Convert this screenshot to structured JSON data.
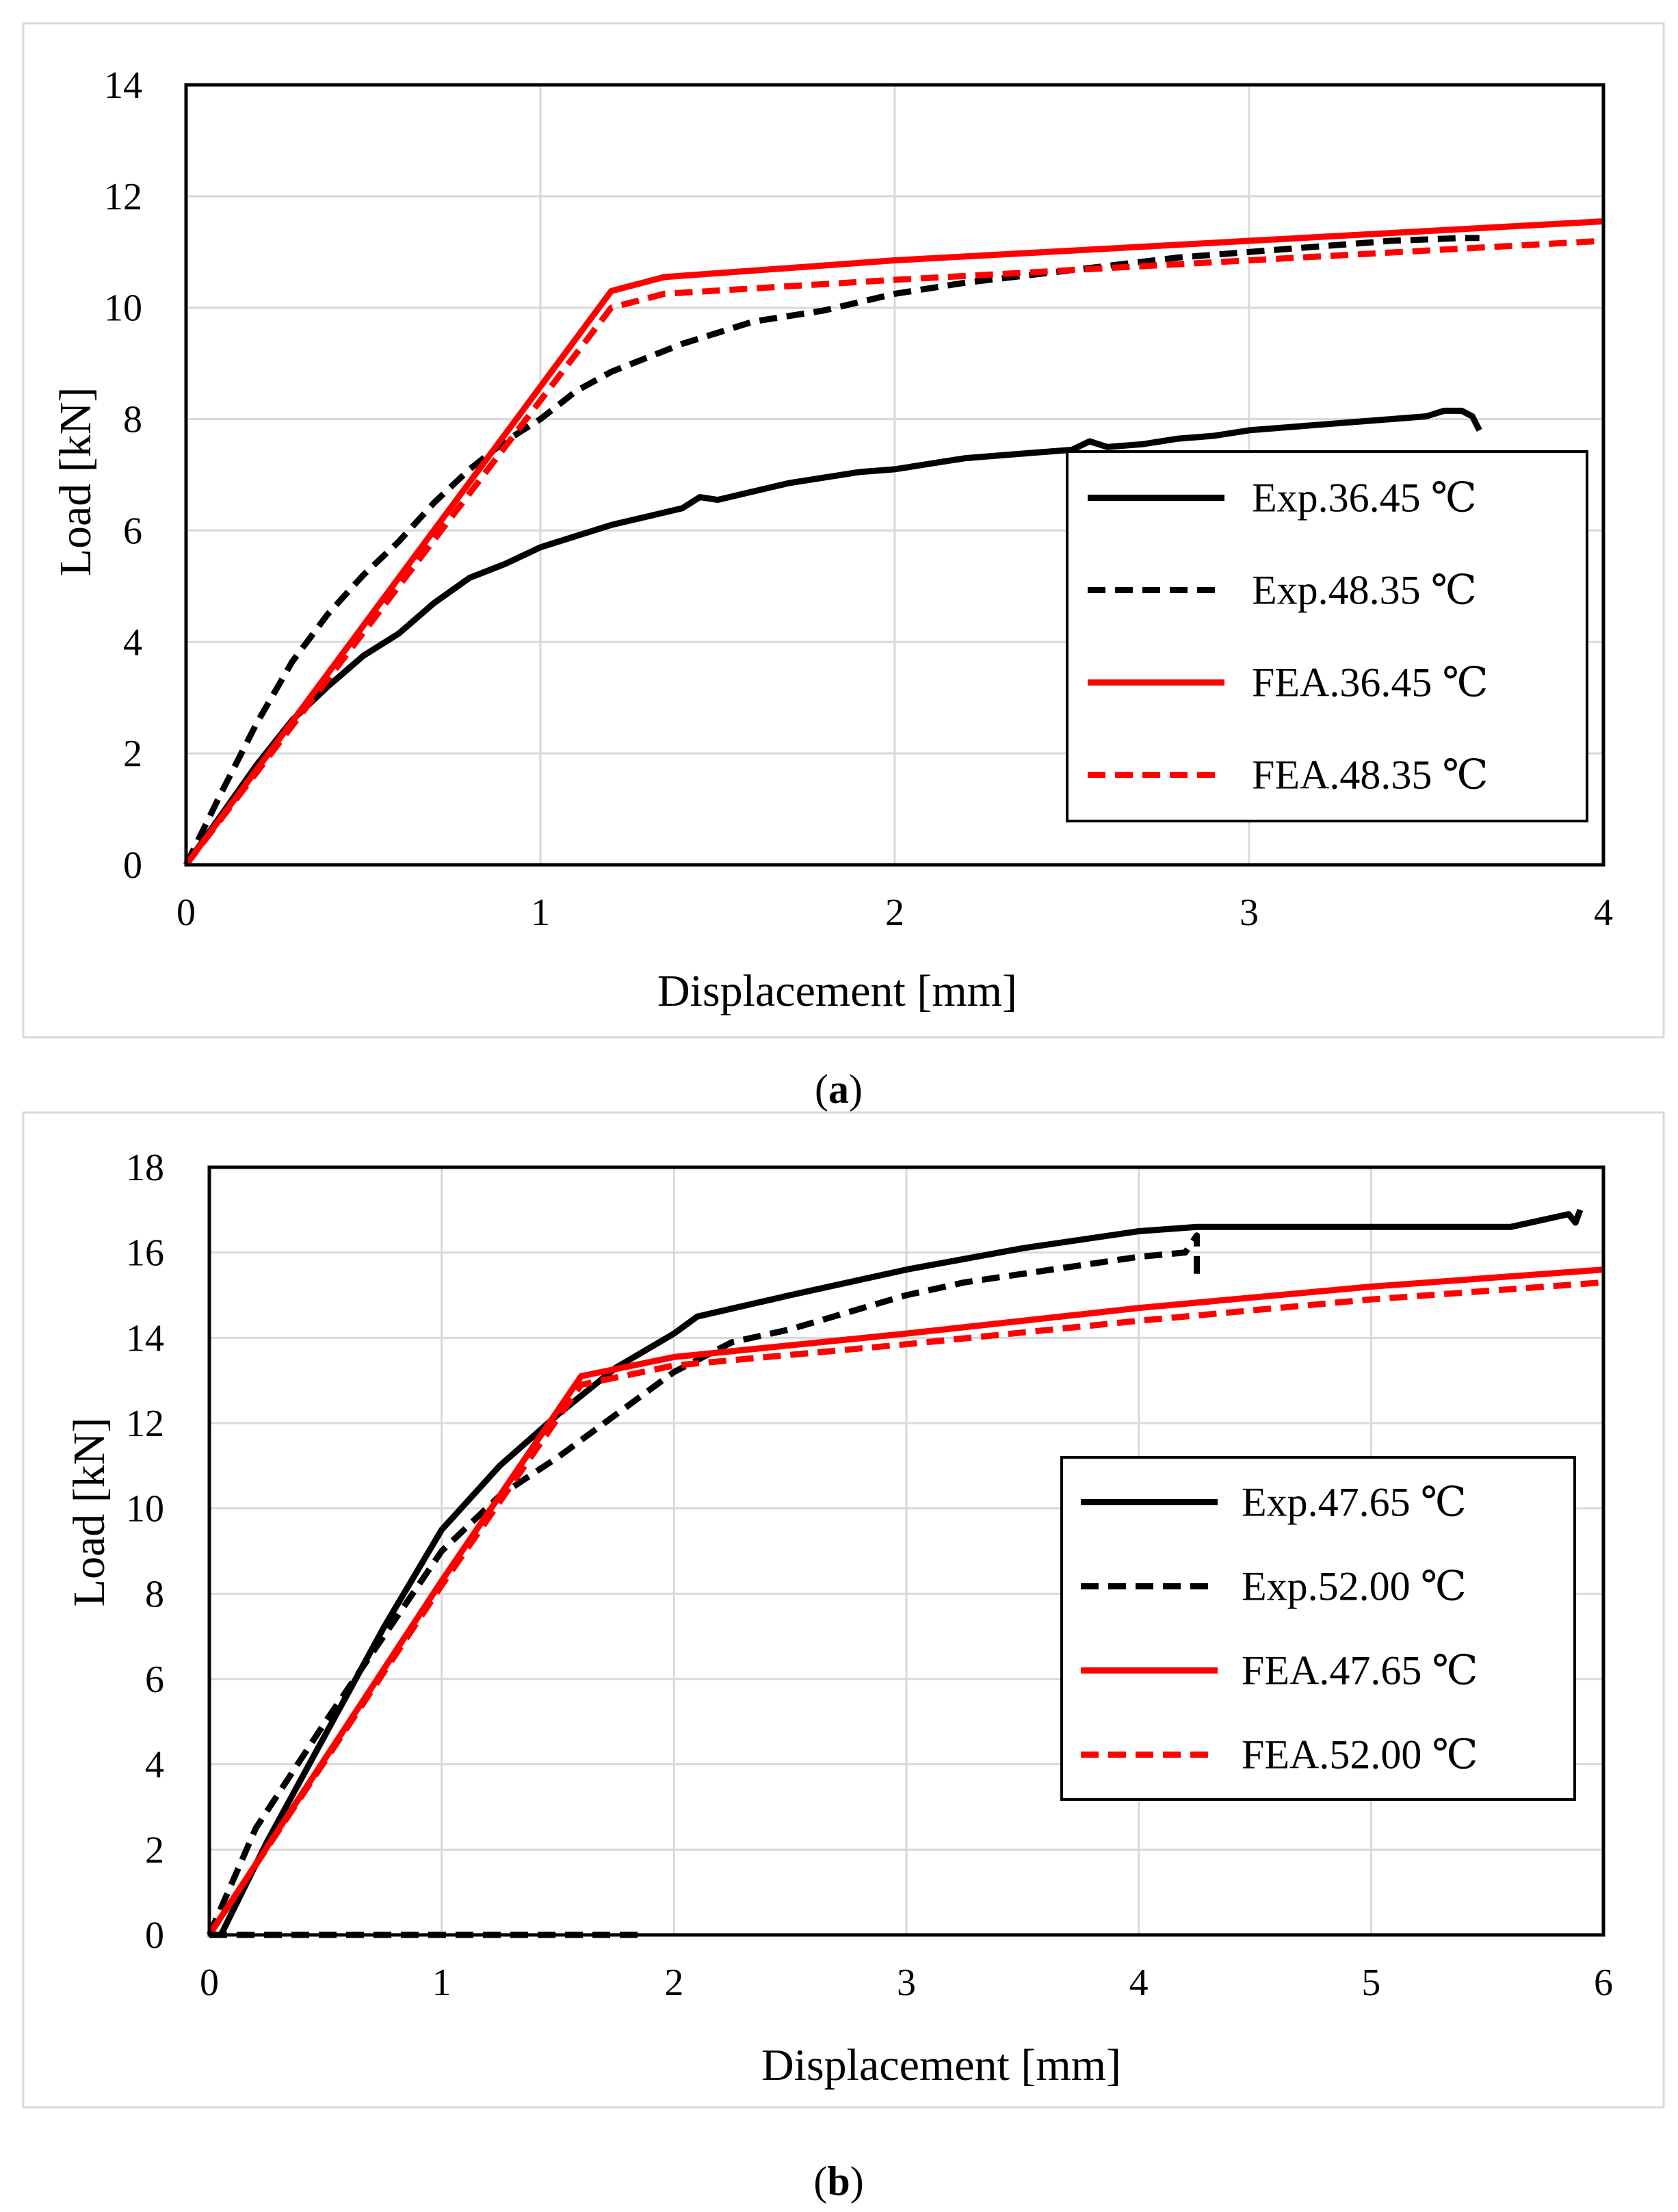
{
  "chart_data": [
    {
      "type": "line",
      "caption_letter": "a",
      "caption_open": "(",
      "caption_close": ")",
      "xlabel": "Displacement [mm]",
      "ylabel": "Load [kN]",
      "xlim": [
        0,
        4
      ],
      "ylim": [
        0,
        14
      ],
      "xticks": [
        0,
        1,
        2,
        3,
        4
      ],
      "yticks": [
        0,
        2,
        4,
        6,
        8,
        10,
        12,
        14
      ],
      "grid": true,
      "legend_position": "bottom-right",
      "series": [
        {
          "name": "Exp.36.45 ℃",
          "color": "#000000",
          "dash": "solid",
          "points": [
            [
              0,
              0
            ],
            [
              0.1,
              0.9
            ],
            [
              0.2,
              1.8
            ],
            [
              0.3,
              2.6
            ],
            [
              0.4,
              3.2
            ],
            [
              0.5,
              3.75
            ],
            [
              0.6,
              4.15
            ],
            [
              0.7,
              4.7
            ],
            [
              0.8,
              5.15
            ],
            [
              0.9,
              5.4
            ],
            [
              1.0,
              5.7
            ],
            [
              1.1,
              5.9
            ],
            [
              1.2,
              6.1
            ],
            [
              1.3,
              6.25
            ],
            [
              1.4,
              6.4
            ],
            [
              1.45,
              6.6
            ],
            [
              1.5,
              6.55
            ],
            [
              1.6,
              6.7
            ],
            [
              1.7,
              6.85
            ],
            [
              1.8,
              6.95
            ],
            [
              1.9,
              7.05
            ],
            [
              2.0,
              7.1
            ],
            [
              2.1,
              7.2
            ],
            [
              2.2,
              7.3
            ],
            [
              2.3,
              7.35
            ],
            [
              2.4,
              7.4
            ],
            [
              2.5,
              7.45
            ],
            [
              2.55,
              7.6
            ],
            [
              2.6,
              7.5
            ],
            [
              2.7,
              7.55
            ],
            [
              2.8,
              7.65
            ],
            [
              2.9,
              7.7
            ],
            [
              3.0,
              7.8
            ],
            [
              3.1,
              7.85
            ],
            [
              3.2,
              7.9
            ],
            [
              3.3,
              7.95
            ],
            [
              3.4,
              8.0
            ],
            [
              3.5,
              8.05
            ],
            [
              3.55,
              8.15
            ],
            [
              3.6,
              8.15
            ],
            [
              3.63,
              8.05
            ],
            [
              3.65,
              7.8
            ]
          ]
        },
        {
          "name": "Exp.48.35 ℃",
          "color": "#000000",
          "dash": "dashed",
          "points": [
            [
              0,
              0
            ],
            [
              0.1,
              1.3
            ],
            [
              0.2,
              2.55
            ],
            [
              0.3,
              3.65
            ],
            [
              0.4,
              4.5
            ],
            [
              0.5,
              5.2
            ],
            [
              0.6,
              5.8
            ],
            [
              0.7,
              6.5
            ],
            [
              0.8,
              7.1
            ],
            [
              0.9,
              7.6
            ],
            [
              1.0,
              8.0
            ],
            [
              1.1,
              8.5
            ],
            [
              1.2,
              8.85
            ],
            [
              1.3,
              9.1
            ],
            [
              1.4,
              9.35
            ],
            [
              1.5,
              9.55
            ],
            [
              1.6,
              9.75
            ],
            [
              1.7,
              9.85
            ],
            [
              1.8,
              9.95
            ],
            [
              1.9,
              10.1
            ],
            [
              2.0,
              10.25
            ],
            [
              2.2,
              10.45
            ],
            [
              2.4,
              10.6
            ],
            [
              2.6,
              10.75
            ],
            [
              2.8,
              10.9
            ],
            [
              3.0,
              11.0
            ],
            [
              3.2,
              11.1
            ],
            [
              3.4,
              11.2
            ],
            [
              3.6,
              11.25
            ],
            [
              3.65,
              11.25
            ]
          ]
        },
        {
          "name": "FEA.36.45 ℃",
          "color": "#ff0000",
          "dash": "solid",
          "points": [
            [
              0,
              0
            ],
            [
              1.2,
              10.3
            ],
            [
              1.35,
              10.55
            ],
            [
              2.0,
              10.85
            ],
            [
              3.0,
              11.2
            ],
            [
              4.0,
              11.55
            ]
          ]
        },
        {
          "name": "FEA.48.35 ℃",
          "color": "#ff0000",
          "dash": "dashed",
          "points": [
            [
              0,
              0
            ],
            [
              1.2,
              10.0
            ],
            [
              1.35,
              10.25
            ],
            [
              2.0,
              10.5
            ],
            [
              3.0,
              10.85
            ],
            [
              4.0,
              11.2
            ]
          ]
        }
      ]
    },
    {
      "type": "line",
      "caption_letter": "b",
      "caption_open": "(",
      "caption_close": ")",
      "xlabel": "Displacement [mm]",
      "ylabel": "Load [kN]",
      "xlim": [
        0,
        6
      ],
      "ylim": [
        0,
        18
      ],
      "xticks": [
        0,
        1,
        2,
        3,
        4,
        5,
        6
      ],
      "yticks": [
        0,
        2,
        4,
        6,
        8,
        10,
        12,
        14,
        16,
        18
      ],
      "grid": true,
      "legend_position": "middle-right",
      "series": [
        {
          "name": "Exp.47.65 ℃",
          "color": "#000000",
          "dash": "solid",
          "points": [
            [
              0.05,
              0
            ],
            [
              0.25,
              2.2
            ],
            [
              0.5,
              4.7
            ],
            [
              0.75,
              7.2
            ],
            [
              1.0,
              9.5
            ],
            [
              1.25,
              11.0
            ],
            [
              1.5,
              12.2
            ],
            [
              1.75,
              13.3
            ],
            [
              2.0,
              14.1
            ],
            [
              2.1,
              14.5
            ],
            [
              2.5,
              15.0
            ],
            [
              3.0,
              15.6
            ],
            [
              3.5,
              16.1
            ],
            [
              4.0,
              16.5
            ],
            [
              4.25,
              16.6
            ],
            [
              5.0,
              16.6
            ],
            [
              5.6,
              16.6
            ],
            [
              5.85,
              16.9
            ],
            [
              5.88,
              16.7
            ],
            [
              5.9,
              17.0
            ]
          ]
        },
        {
          "name": "Exp.52.00 ℃",
          "color": "#000000",
          "dash": "dashed",
          "points": [
            [
              0,
              0
            ],
            [
              0.2,
              2.5
            ],
            [
              0.5,
              5.0
            ],
            [
              0.75,
              7.0
            ],
            [
              1.0,
              9.0
            ],
            [
              1.25,
              10.3
            ],
            [
              1.5,
              11.2
            ],
            [
              1.75,
              12.2
            ],
            [
              2.0,
              13.2
            ],
            [
              2.25,
              13.9
            ],
            [
              2.5,
              14.2
            ],
            [
              2.75,
              14.6
            ],
            [
              3.0,
              15.0
            ],
            [
              3.25,
              15.3
            ],
            [
              3.5,
              15.5
            ],
            [
              3.75,
              15.7
            ],
            [
              4.0,
              15.9
            ],
            [
              4.2,
              16.0
            ],
            [
              4.25,
              16.4
            ],
            [
              4.25,
              15.4
            ]
          ]
        },
        {
          "name": "FEA.47.65 ℃",
          "color": "#ff0000",
          "dash": "solid",
          "points": [
            [
              0,
              0
            ],
            [
              1.0,
              8.3
            ],
            [
              1.6,
              13.1
            ],
            [
              2.0,
              13.55
            ],
            [
              3.0,
              14.1
            ],
            [
              4.0,
              14.7
            ],
            [
              5.0,
              15.2
            ],
            [
              6.0,
              15.6
            ]
          ]
        },
        {
          "name": "FEA.52.00 ℃",
          "color": "#ff0000",
          "dash": "dashed",
          "points": [
            [
              0,
              0
            ],
            [
              1.0,
              8.2
            ],
            [
              1.6,
              12.9
            ],
            [
              2.0,
              13.35
            ],
            [
              3.0,
              13.85
            ],
            [
              4.0,
              14.4
            ],
            [
              5.0,
              14.9
            ],
            [
              6.0,
              15.3
            ]
          ]
        },
        {
          "name": "",
          "color": "#000000",
          "dash": "dashed",
          "in_legend": false,
          "points": [
            [
              0,
              0
            ],
            [
              1.85,
              0
            ]
          ]
        }
      ]
    }
  ]
}
